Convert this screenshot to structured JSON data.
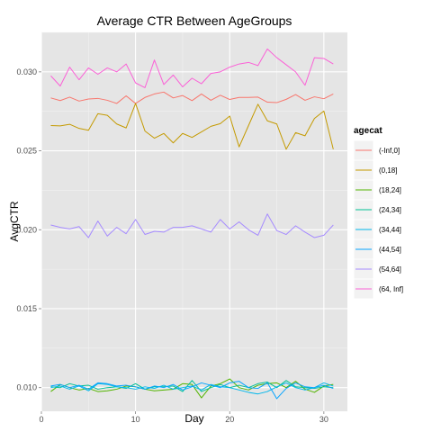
{
  "chart_data": {
    "type": "line",
    "title": "Average CTR Between AgeGroups",
    "xlabel": "Day",
    "ylabel": "AvgCTR",
    "xlim": [
      0,
      32.5
    ],
    "ylim": [
      0.0085,
      0.0325
    ],
    "x_ticks": [
      0,
      10,
      20,
      30
    ],
    "x_tick_labels": [
      "0",
      "10",
      "20",
      "30"
    ],
    "y_ticks": [
      0.01,
      0.015,
      0.02,
      0.025,
      0.03
    ],
    "y_tick_labels": [
      "0.010",
      "0.015",
      "0.020",
      "0.025",
      "0.030"
    ],
    "grid": true,
    "legend": {
      "title": "agecat",
      "position": "right"
    },
    "x": [
      1,
      2,
      3,
      4,
      5,
      6,
      7,
      8,
      9,
      10,
      11,
      12,
      13,
      14,
      15,
      16,
      17,
      18,
      19,
      20,
      21,
      22,
      23,
      24,
      25,
      26,
      27,
      28,
      29,
      30,
      31
    ],
    "series": [
      {
        "name": "(-Inf,0]",
        "color": "#F8766D",
        "values": [
          0.02835,
          0.02818,
          0.0284,
          0.02815,
          0.02828,
          0.02832,
          0.0282,
          0.028,
          0.02848,
          0.028,
          0.02838,
          0.0286,
          0.02872,
          0.02835,
          0.0285,
          0.02818,
          0.0286,
          0.0282,
          0.02852,
          0.02825,
          0.02838,
          0.02838,
          0.0284,
          0.02808,
          0.02805,
          0.02826,
          0.02856,
          0.0282,
          0.02842,
          0.0283,
          0.0286
        ]
      },
      {
        "name": "(0,18]",
        "color": "#C49A00",
        "values": [
          0.0266,
          0.02658,
          0.02668,
          0.02642,
          0.0263,
          0.02735,
          0.02725,
          0.0267,
          0.02645,
          0.028,
          0.02625,
          0.0258,
          0.0261,
          0.0255,
          0.0261,
          0.02585,
          0.0262,
          0.02655,
          0.02672,
          0.0272,
          0.02525,
          0.0266,
          0.02795,
          0.0269,
          0.0267,
          0.0251,
          0.02615,
          0.02595,
          0.02705,
          0.02752,
          0.0251
        ]
      },
      {
        "name": "(18,24]",
        "color": "#53B400",
        "values": [
          0.00975,
          0.0102,
          0.01,
          0.00985,
          0.00995,
          0.00975,
          0.0098,
          0.0099,
          0.0101,
          0.01005,
          0.0099,
          0.0098,
          0.00985,
          0.0099,
          0.01025,
          0.0102,
          0.00935,
          0.0101,
          0.01025,
          0.01055,
          0.01,
          0.00985,
          0.01015,
          0.01025,
          0.0103,
          0.01,
          0.0104,
          0.0099,
          0.0097,
          0.0101,
          0.0102
        ]
      },
      {
        "name": "(24,34]",
        "color": "#00C094",
        "values": [
          0.01005,
          0.01,
          0.01025,
          0.0101,
          0.01015,
          0.0099,
          0.01,
          0.01005,
          0.00995,
          0.01025,
          0.0099,
          0.01005,
          0.01005,
          0.0101,
          0.00975,
          0.01045,
          0.00975,
          0.01,
          0.0102,
          0.01,
          0.01015,
          0.01,
          0.01025,
          0.01035,
          0.01,
          0.01045,
          0.01005,
          0.01,
          0.00995,
          0.01005,
          0.01
        ]
      },
      {
        "name": "(34,44]",
        "color": "#00B6EB",
        "values": [
          0.01,
          0.0101,
          0.0099,
          0.0101,
          0.0098,
          0.01025,
          0.0102,
          0.01005,
          0.01,
          0.0099,
          0.01005,
          0.00995,
          0.01015,
          0.0099,
          0.01,
          0.0101,
          0.00985,
          0.0102,
          0.01005,
          0.01,
          0.00985,
          0.0097,
          0.0096,
          0.00975,
          0.01005,
          0.0103,
          0.01,
          0.00985,
          0.01,
          0.0103,
          0.0101
        ]
      },
      {
        "name": "(44,54]",
        "color": "#06A4FF",
        "values": [
          0.0101,
          0.0102,
          0.01,
          0.01015,
          0.0099,
          0.0103,
          0.01025,
          0.0101,
          0.01015,
          0.01005,
          0.0099,
          0.0101,
          0.01,
          0.0102,
          0.00985,
          0.01005,
          0.0103,
          0.01015,
          0.01,
          0.0103,
          0.0104,
          0.01,
          0.00995,
          0.0103,
          0.0093,
          0.00995,
          0.0103,
          0.01005,
          0.01,
          0.01015,
          0.00995
        ]
      },
      {
        "name": "(54,64]",
        "color": "#A58AFF",
        "values": [
          0.0203,
          0.02015,
          0.02005,
          0.0202,
          0.0195,
          0.02055,
          0.0196,
          0.02015,
          0.01975,
          0.02065,
          0.0197,
          0.0199,
          0.01985,
          0.02015,
          0.02015,
          0.02025,
          0.02005,
          0.01985,
          0.02065,
          0.02005,
          0.0205,
          0.02,
          0.01965,
          0.021,
          0.01995,
          0.0197,
          0.02025,
          0.01985,
          0.0195,
          0.01965,
          0.0203
        ]
      },
      {
        "name": "(64, Inf]",
        "color": "#FB61D7",
        "values": [
          0.02975,
          0.0291,
          0.0303,
          0.0295,
          0.03025,
          0.02985,
          0.03025,
          0.03,
          0.0305,
          0.0293,
          0.029,
          0.03075,
          0.0292,
          0.0298,
          0.02905,
          0.0296,
          0.02925,
          0.0299,
          0.03,
          0.0303,
          0.0305,
          0.0306,
          0.0304,
          0.03145,
          0.0309,
          0.03045,
          0.03,
          0.02915,
          0.0309,
          0.03085,
          0.0305
        ]
      }
    ]
  }
}
